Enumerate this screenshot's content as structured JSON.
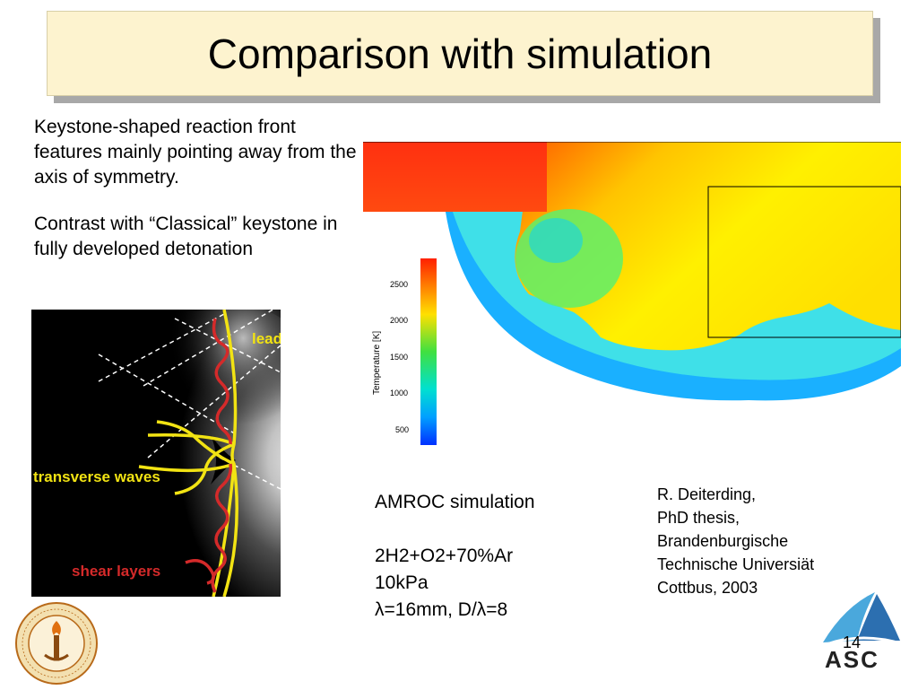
{
  "slide": {
    "title": "Comparison with simulation",
    "paragraph1": "Keystone-shaped reaction front features mainly pointing away from the axis of symmetry.",
    "paragraph2": "Contrast with “Classical” keystone in fully developed detonation",
    "page_number": "14"
  },
  "photo": {
    "label_leading": "lead",
    "label_transverse": "transverse waves",
    "label_shear": "shear layers",
    "annotation_colors": {
      "yellow": "#f2e313",
      "red": "#d42a2a"
    }
  },
  "simulation": {
    "colorbar_label": "Temperature [K]",
    "colorbar_ticks": [
      "2500",
      "2000",
      "1500",
      "1000",
      "500"
    ]
  },
  "amroc": {
    "line1": "AMROC simulation",
    "line2": "2H2+O2+70%Ar",
    "line3": "10kPa",
    "line4": "λ=16mm,  D/λ=8"
  },
  "citation": {
    "line1": "R. Deiterding,",
    "line2": "PhD thesis,",
    "line3": "Brandenburgische",
    "line4": "Technische Universiät",
    "line5": "Cottbus, 2003"
  },
  "logos": {
    "left": "caltech-seal-icon",
    "right": "asc-logo-icon",
    "right_text": "ASC"
  }
}
